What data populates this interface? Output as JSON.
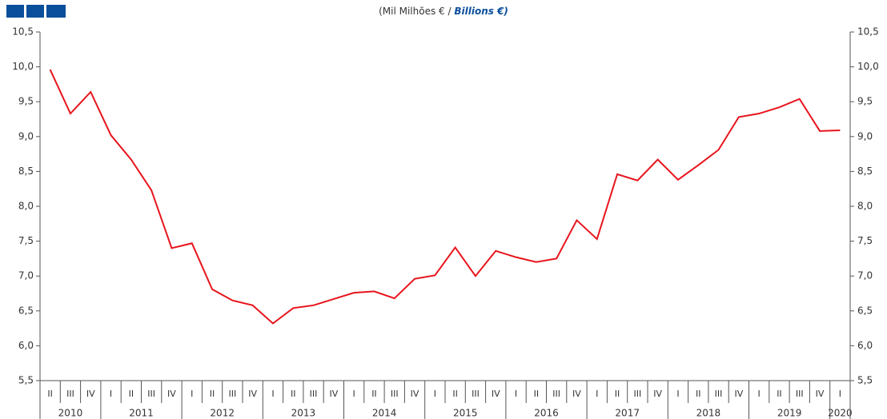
{
  "chart_data": {
    "type": "line",
    "title": "(Mil Milhões € /",
    "title_en": "Billions €)",
    "categories": [
      "II",
      "III",
      "IV",
      "I",
      "II",
      "III",
      "IV",
      "I",
      "II",
      "III",
      "IV",
      "I",
      "II",
      "III",
      "IV",
      "I",
      "II",
      "III",
      "IV",
      "I",
      "II",
      "III",
      "IV",
      "I",
      "II",
      "III",
      "IV",
      "I",
      "II",
      "III",
      "IV",
      "I",
      "II",
      "III",
      "IV",
      "I",
      "II",
      "III",
      "IV",
      "I"
    ],
    "years": [
      "2010",
      "2011",
      "2012",
      "2013",
      "2014",
      "2015",
      "2016",
      "2017",
      "2018",
      "2019",
      "2020"
    ],
    "series": [
      {
        "color": "#e8141c",
        "values": [
          9.96,
          9.33,
          9.64,
          9.02,
          8.67,
          8.23,
          7.4,
          7.47,
          6.81,
          6.65,
          6.58,
          6.32,
          6.54,
          6.58,
          6.67,
          6.76,
          6.78,
          6.68,
          6.96,
          7.01,
          7.41,
          7.0,
          7.36,
          7.27,
          7.2,
          7.25,
          7.8,
          7.53,
          8.46,
          8.37,
          8.67,
          8.38,
          8.59,
          8.81,
          9.28,
          9.33,
          9.42,
          9.54,
          9.08,
          9.09
        ]
      }
    ],
    "ylim": [
      5.5,
      10.5
    ],
    "yticks": [
      {
        "value": 5.5,
        "label": "5,5"
      },
      {
        "value": 6,
        "label": "6,0"
      },
      {
        "value": 6.5,
        "label": "6,5"
      },
      {
        "value": 7,
        "label": "7,0"
      },
      {
        "value": 7.5,
        "label": "7,5"
      },
      {
        "value": 8,
        "label": "8,0"
      },
      {
        "value": 8.5,
        "label": "8,5"
      },
      {
        "value": 9,
        "label": "9,0"
      },
      {
        "value": 9.5,
        "label": "9,5"
      },
      {
        "value": 10,
        "label": "10,0"
      },
      {
        "value": 10.5,
        "label": "10,5"
      }
    ],
    "grid": false
  }
}
